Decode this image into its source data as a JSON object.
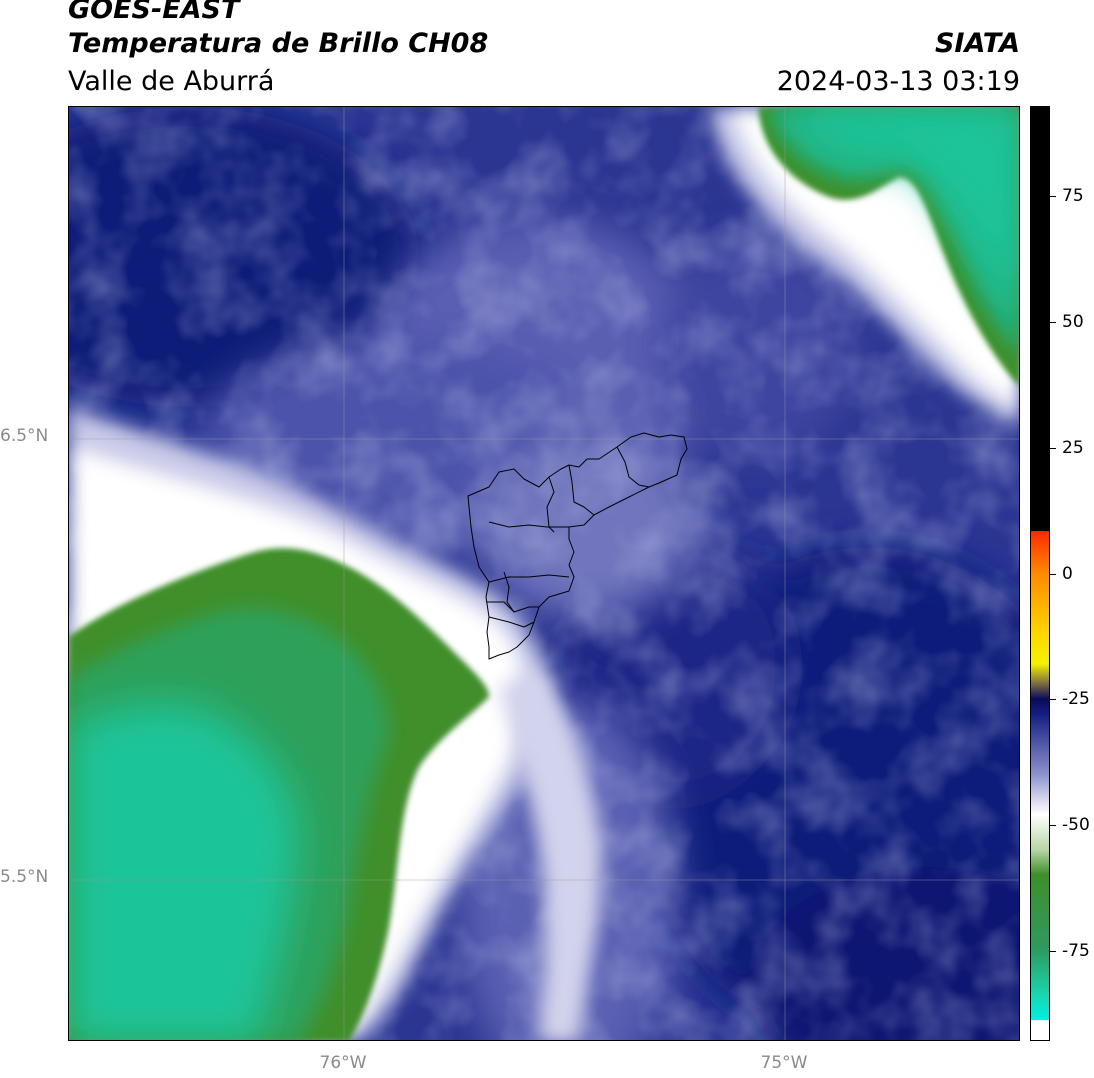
{
  "header": {
    "satellite": "GOES-EAST",
    "title": "Temperatura de Brillo CH08",
    "region": "Valle de Aburrá",
    "organization": "SIATA",
    "datetime": "2024-03-13 03:19"
  },
  "map": {
    "lat_labels": [
      "6.5°N",
      "5.5°N"
    ],
    "lon_labels": [
      "76°W",
      "75°W"
    ],
    "feature": "Valle de Aburrá municipal boundaries",
    "palette": {
      "cold_top": "#1fc499",
      "mid_green": "#3f8f2a",
      "white": "#ffffff",
      "lavender": "#9fa2d6",
      "blue": "#4a4fa8",
      "navy": "#101a78"
    }
  },
  "colorbar": {
    "ticks": [
      "75",
      "50",
      "25",
      "0",
      "-25",
      "-50",
      "-75"
    ],
    "tick_values": [
      75,
      50,
      25,
      0,
      -25,
      -50,
      -75
    ],
    "range": [
      -93,
      93
    ]
  }
}
